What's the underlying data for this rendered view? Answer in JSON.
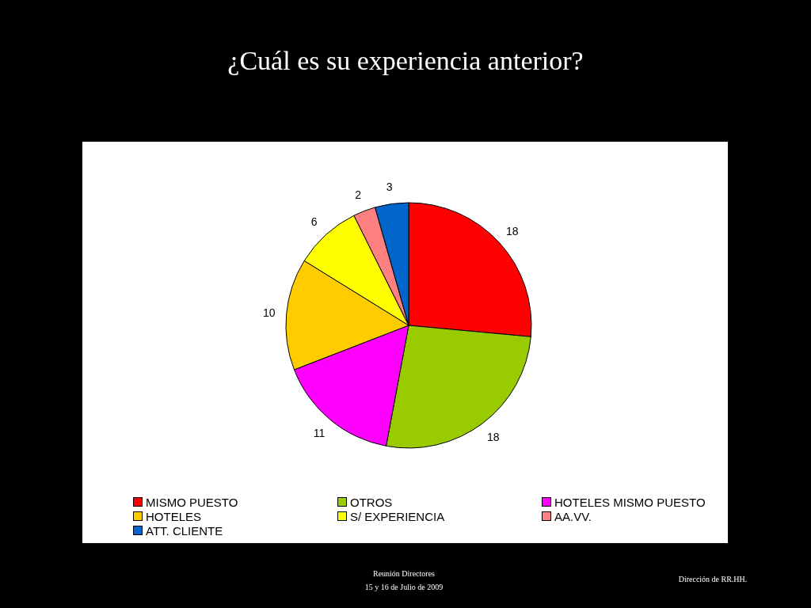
{
  "chart_data": {
    "type": "pie",
    "title": "¿Cuál es su experiencia anterior?",
    "categories": [
      "MISMO PUESTO",
      "OTROS",
      "HOTELES MISMO PUESTO",
      "HOTELES",
      "S/ EXPERIENCIA",
      "AA.VV.",
      "ATT. CLIENTE"
    ],
    "values": [
      18,
      18,
      11,
      10,
      6,
      2,
      3
    ],
    "colors": [
      "#ff0000",
      "#99cc00",
      "#ff00ff",
      "#ffcc00",
      "#ffff00",
      "#ff8080",
      "#0066cc"
    ],
    "data_labels": true,
    "legend": "bottom",
    "annotations": [
      "Reunión Directores",
      "15 y 16 de Julio de 2009",
      "Dirección de RR.HH."
    ]
  }
}
